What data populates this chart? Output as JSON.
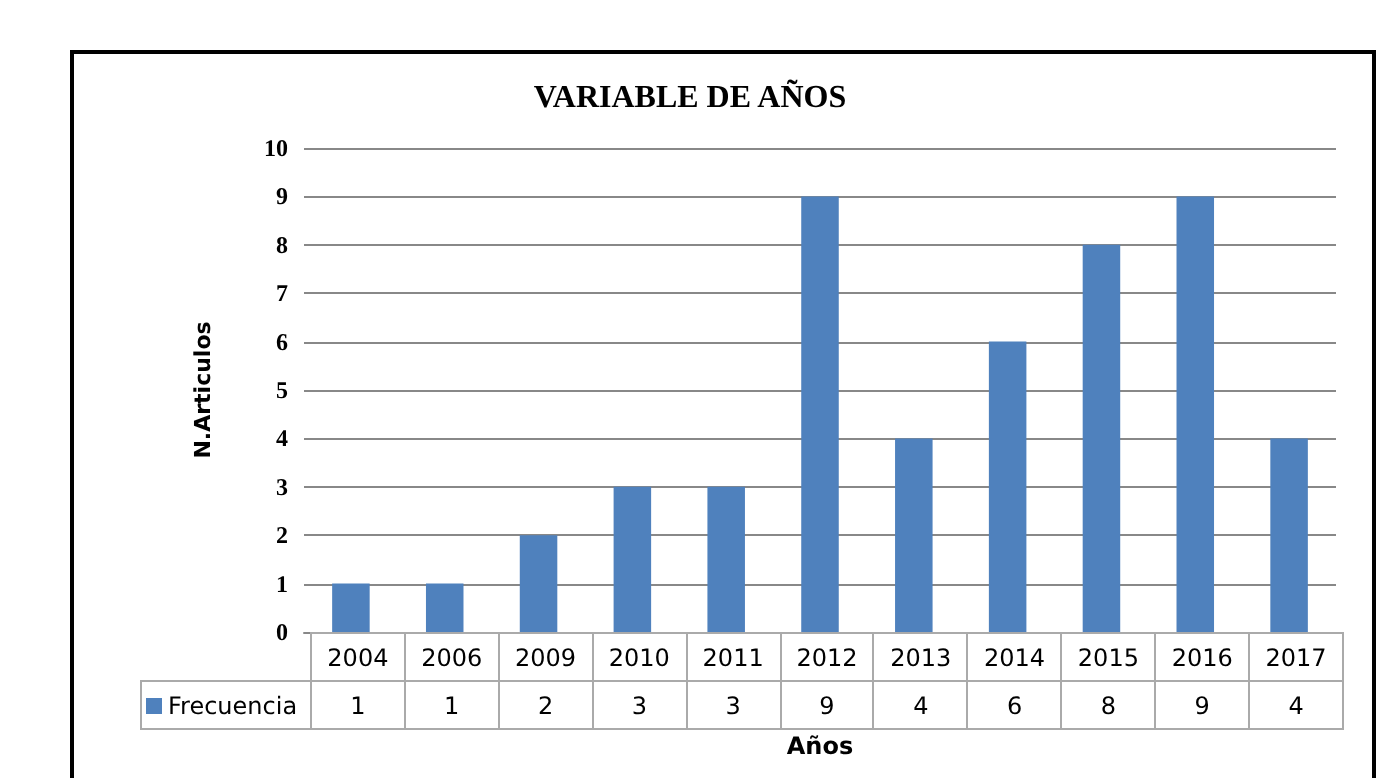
{
  "chart_data": {
    "type": "bar",
    "title": "VARIABLE DE AÑOS",
    "xlabel": "Años",
    "ylabel": "N.Articulos",
    "categories": [
      "2004",
      "2006",
      "2009",
      "2010",
      "2011",
      "2012",
      "2013",
      "2014",
      "2015",
      "2016",
      "2017"
    ],
    "series": [
      {
        "name": "Frecuencia",
        "color": "#4f81bd",
        "values": [
          1,
          1,
          2,
          3,
          3,
          9,
          4,
          6,
          8,
          9,
          4
        ]
      }
    ],
    "ylim": [
      0,
      10
    ],
    "yticks": [
      0,
      1,
      2,
      3,
      4,
      5,
      6,
      7,
      8,
      9,
      10
    ],
    "grid": "y",
    "legend": "bottom",
    "data_labels": true
  }
}
